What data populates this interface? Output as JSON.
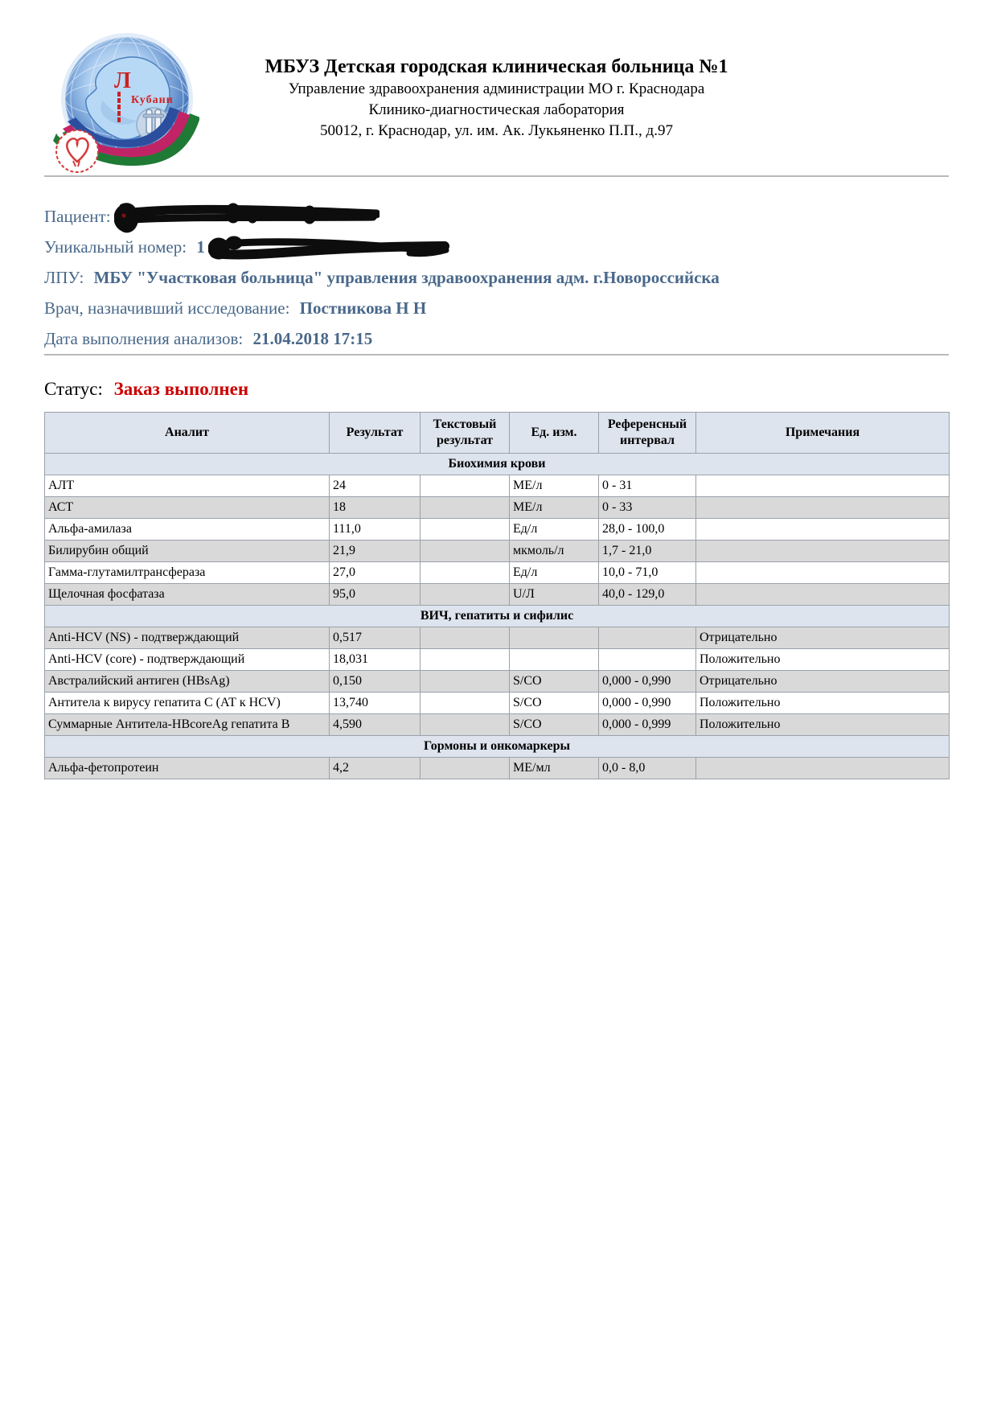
{
  "org": {
    "name": "МБУЗ Детская городская клиническая больница №1",
    "line2": "Управление здравоохранения администрации МО г. Краснодара",
    "line3": "Клинико-диагностическая лаборатория",
    "line4": "50012, г. Краснодар, ул. им. Ак. Лукьяненко П.П., д.97",
    "logo_letter": "Л",
    "logo_kuban": "Кубани"
  },
  "patient": {
    "patient_label": "Пациент:",
    "patient_redacted": true,
    "unique_number_label": "Уникальный номер:",
    "unique_number_visible": "1",
    "unique_number_redacted": true,
    "lpu_label": "ЛПУ:",
    "lpu_value": "МБУ \"Участковая больница\" управления здравоохранения адм. г.Новороссийска",
    "doctor_label": "Врач, назначивший исследование:",
    "doctor_value": "Постникова Н Н",
    "date_label": "Дата выполнения анализов:",
    "date_value": "21.04.2018 17:15"
  },
  "status": {
    "label": "Статус:",
    "value": "Заказ выполнен",
    "value_color": "#cc0000"
  },
  "table": {
    "columns": [
      "Аналит",
      "Результат",
      "Текстовый результат",
      "Ед. изм.",
      "Референсный интервал",
      "Примечания"
    ],
    "sections": [
      {
        "title": "Биохимия крови",
        "rows": [
          {
            "analyte": "АЛТ",
            "result": "24",
            "text_result": "",
            "unit": "МЕ/л",
            "reference": "0 - 31",
            "note": ""
          },
          {
            "analyte": "АСТ",
            "result": "18",
            "text_result": "",
            "unit": "МЕ/л",
            "reference": "0 - 33",
            "note": ""
          },
          {
            "analyte": "Альфа-амилаза",
            "result": "111,0",
            "text_result": "",
            "unit": "Ед/л",
            "reference": "28,0 - 100,0",
            "note": ""
          },
          {
            "analyte": "Билирубин общий",
            "result": "21,9",
            "text_result": "",
            "unit": "мкмоль/л",
            "reference": "1,7 - 21,0",
            "note": ""
          },
          {
            "analyte": "Гамма-глутамилтрансфераза",
            "result": "27,0",
            "text_result": "",
            "unit": "Ед/л",
            "reference": "10,0 - 71,0",
            "note": ""
          },
          {
            "analyte": "Щелочная фосфатаза",
            "result": "95,0",
            "text_result": "",
            "unit": "U/Л",
            "reference": "40,0 - 129,0",
            "note": ""
          }
        ]
      },
      {
        "title": "ВИЧ, гепатиты и сифилис",
        "rows": [
          {
            "analyte": "Anti-HCV (NS) - подтверждающий",
            "result": "0,517",
            "text_result": "",
            "unit": "",
            "reference": "",
            "note": "Отрицательно"
          },
          {
            "analyte": "Anti-HCV (core) - подтверждающий",
            "result": "18,031",
            "text_result": "",
            "unit": "",
            "reference": "",
            "note": "Положительно"
          },
          {
            "analyte": "Австралийский антиген (HBsAg)",
            "result": "0,150",
            "text_result": "",
            "unit": "S/CO",
            "reference": "0,000 - 0,990",
            "note": "Отрицательно"
          },
          {
            "analyte": "Антитела к вирусу гепатита С (АТ к HCV)",
            "result": "13,740",
            "text_result": "",
            "unit": "S/CO",
            "reference": "0,000 - 0,990",
            "note": "Положительно"
          },
          {
            "analyte": "Суммарные Антитела-HBcoreAg гепатита В",
            "result": "4,590",
            "text_result": "",
            "unit": "S/CO",
            "reference": "0,000 - 0,999",
            "note": "Положительно"
          }
        ]
      },
      {
        "title": "Гормоны и онкомаркеры",
        "rows": [
          {
            "analyte": "Альфа-фетопротеин",
            "result": "4,2",
            "text_result": "",
            "unit": "МЕ/мл",
            "reference": "0,0 - 8,0",
            "note": ""
          }
        ]
      }
    ]
  },
  "colors": {
    "info_text": "#49688a",
    "status_red": "#cc0000",
    "table_header_bg": "#dee4ee",
    "row_shade_bg": "#d9d9d9",
    "table_border": "#9aa1a9"
  }
}
